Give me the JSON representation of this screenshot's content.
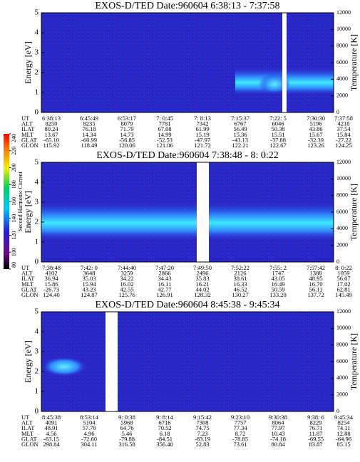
{
  "colorbar": {
    "label": "Second Harmonic Current",
    "lim": [
      80,
      240
    ],
    "ticks": [
      80,
      100,
      120,
      140,
      160,
      180,
      200,
      220,
      240
    ]
  },
  "panels": [
    {
      "title": "EXOS-D/TED  Date:960604  6:38:13 - 7:37:58",
      "y_label": "Energy [eV]",
      "ylim": [
        0,
        5
      ],
      "yticks": [
        0,
        1,
        2,
        3,
        4,
        5
      ],
      "y2_label": "Temperature [K]",
      "y2lim": [
        0,
        12000
      ],
      "y2ticks": [
        0,
        2000,
        4000,
        6000,
        8000,
        10000,
        12000
      ],
      "ephemeris": {
        "labels": [
          "UT",
          "ALT",
          "ILAT",
          "MLT",
          "GLAT",
          "GLON"
        ],
        "rows": [
          [
            "6:38:13",
            "6:45:49",
            "6:53:17",
            "7: 0:45",
            "7: 8:13",
            "7:15:37",
            "7:22: 5",
            "7:30:30",
            "7:37:58"
          ],
          [
            "8250",
            "8235",
            "8079",
            "7781",
            "7342",
            "6767",
            "6046",
            "5196",
            "4218"
          ],
          [
            "80.24",
            "76.18",
            "71.79",
            "67.08",
            "61.99",
            "56.49",
            "50.38",
            "43.86",
            "37.54"
          ],
          [
            "13.67",
            "14.34",
            "14.73",
            "14.99",
            "15.19",
            "15.36",
            "15.51",
            "15.67",
            "15.84"
          ],
          [
            "-65.10",
            "-60.99",
            "-56.85",
            "-52.53",
            "-47.97",
            "-43.13",
            "-37.88",
            "-32.39",
            "-27.22"
          ],
          [
            "115.92",
            "118.49",
            "120.06",
            "121.06",
            "121.72",
            "122.21",
            "122.67",
            "123.26",
            "124.25"
          ]
        ]
      }
    },
    {
      "title": "EXOS-D/TED  Date:960604  7:38:48 - 8: 0:22",
      "y_label": "Energy [eV]",
      "ylim": [
        0,
        5
      ],
      "yticks": [
        0,
        1,
        2,
        3,
        4,
        5
      ],
      "y2_label": "Temperature [K]",
      "y2lim": [
        0,
        12000
      ],
      "y2ticks": [
        0,
        2000,
        4000,
        6000,
        8000,
        10000,
        12000
      ],
      "ephemeris": {
        "labels": [
          "UT",
          "ALT",
          "ILAT",
          "MLT",
          "GLAT",
          "GLON"
        ],
        "rows": [
          [
            "7:38:48",
            "7:42: 0",
            "7:44:40",
            "7:47:20",
            "7:49:50",
            "7:52:22",
            "7:55: 2",
            "7:57:42",
            "8: 0:22"
          ],
          [
            "4102",
            "3648",
            "3259",
            "2866",
            "2496",
            "2126",
            "1747",
            "1388",
            "1059"
          ],
          [
            "36.94",
            "35.03",
            "34.22",
            "34.43",
            "35.83",
            "38.61",
            "43.05",
            "48.95",
            "56.07"
          ],
          [
            "15.86",
            "15.94",
            "16.02",
            "16.11",
            "16.21",
            "16.33",
            "16.49",
            "16.70",
            "17.02"
          ],
          [
            "-26.73",
            "43.23",
            "42.55",
            "42.77",
            "44.02",
            "46.52",
            "50.59",
            "56.11",
            "62.81"
          ],
          [
            "124.40",
            "124.87",
            "125.76",
            "126.91",
            "128.32",
            "130.27",
            "133.20",
            "137.72",
            "145.49"
          ]
        ]
      }
    },
    {
      "title": "EXOS-D/TED  Date:960604  8:45:38 - 9:45:34",
      "y_label": "Energy [eV]",
      "ylim": [
        0,
        5
      ],
      "yticks": [
        0,
        1,
        2,
        3,
        4,
        5
      ],
      "y2_label": "Temperature [K]",
      "y2lim": [
        0,
        12000
      ],
      "y2ticks": [
        0,
        2000,
        4000,
        6000,
        8000,
        10000,
        12000
      ],
      "ephemeris": {
        "labels": [
          "UT",
          "ALT",
          "ILAT",
          "MLT",
          "GLAT",
          "GLON"
        ],
        "rows": [
          [
            "8:45:38",
            "8:53:14",
            "9: 0:38",
            "9: 8:14",
            "9:15:42",
            "9:23:10",
            "9:30:38",
            "9:38: 6",
            "9:45:34"
          ],
          [
            "4091",
            "5104",
            "5968",
            "6716",
            "7308",
            "7757",
            "8064",
            "8229",
            "8254"
          ],
          [
            "48.91",
            "57.70",
            "64.76",
            "70.52",
            "74.75",
            "77.34",
            "77.97",
            "76.71",
            "74.11"
          ],
          [
            "4.56",
            "4.96",
            "5.46",
            "6.18",
            "7.23",
            "8.72",
            "10.43",
            "11.87",
            "12.88"
          ],
          [
            "-63.15",
            "-72.60",
            "-79.88",
            "-84.51",
            "-83.19",
            "-78.85",
            "-74.18",
            "-69.55",
            "-64.96"
          ],
          [
            "298.84",
            "304.11",
            "316.58",
            "356.40",
            "52.83",
            "73.61",
            "80.84",
            "83.87",
            "85.15"
          ]
        ]
      }
    }
  ]
}
